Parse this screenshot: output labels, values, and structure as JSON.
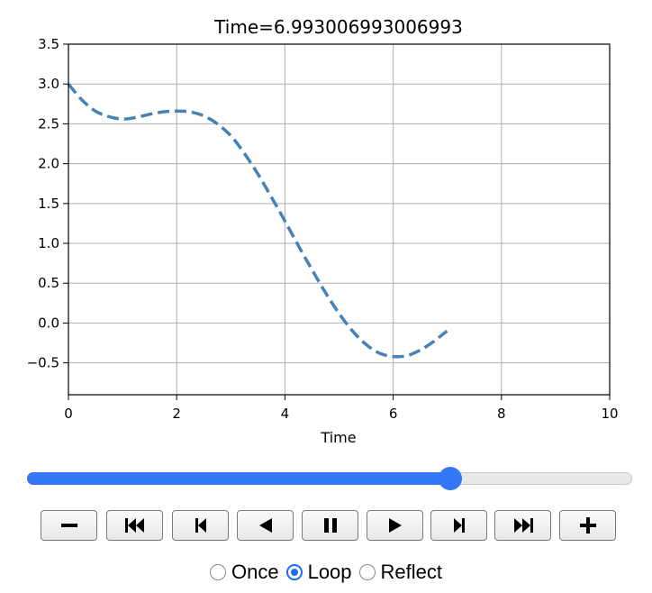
{
  "chart_data": {
    "type": "line",
    "title": "Time=6.993006993006993",
    "xlabel": "Time",
    "ylabel": "",
    "xlim": [
      0,
      10
    ],
    "ylim": [
      -0.9,
      3.5
    ],
    "xticks": [
      0,
      2,
      4,
      6,
      8,
      10
    ],
    "xtick_labels": [
      "0",
      "2",
      "4",
      "6",
      "8",
      "10"
    ],
    "yticks": [
      -0.5,
      0.0,
      0.5,
      1.0,
      1.5,
      2.0,
      2.5,
      3.0,
      3.5
    ],
    "ytick_labels": [
      "−0.5",
      "0.0",
      "0.5",
      "1.0",
      "1.5",
      "2.0",
      "2.5",
      "3.0",
      "3.5"
    ],
    "grid": true,
    "series": [
      {
        "color": "#4682b4",
        "linestyle": "dashed",
        "x": [
          0,
          0.25,
          0.5,
          0.75,
          1.0,
          1.25,
          1.5,
          1.75,
          2.0,
          2.25,
          2.5,
          2.75,
          3.0,
          3.25,
          3.5,
          3.75,
          4.0,
          4.25,
          4.5,
          4.75,
          5.0,
          5.25,
          5.5,
          5.75,
          6.0,
          6.25,
          6.5,
          6.75,
          6.993
        ],
        "y": [
          3.0,
          2.8,
          2.66,
          2.59,
          2.56,
          2.58,
          2.62,
          2.65,
          2.66,
          2.65,
          2.6,
          2.5,
          2.35,
          2.13,
          1.87,
          1.58,
          1.28,
          0.97,
          0.67,
          0.38,
          0.12,
          -0.1,
          -0.27,
          -0.38,
          -0.42,
          -0.41,
          -0.34,
          -0.23,
          -0.1
        ]
      }
    ]
  },
  "player": {
    "slider_fraction": 0.7,
    "buttons": [
      "decrease-speed",
      "first-frame",
      "previous-frame",
      "play-reverse",
      "pause",
      "play-forward",
      "next-frame",
      "last-frame",
      "increase-speed"
    ],
    "modes": [
      {
        "label": "Once",
        "checked": false
      },
      {
        "label": "Loop",
        "checked": true
      },
      {
        "label": "Reflect",
        "checked": false
      }
    ]
  }
}
